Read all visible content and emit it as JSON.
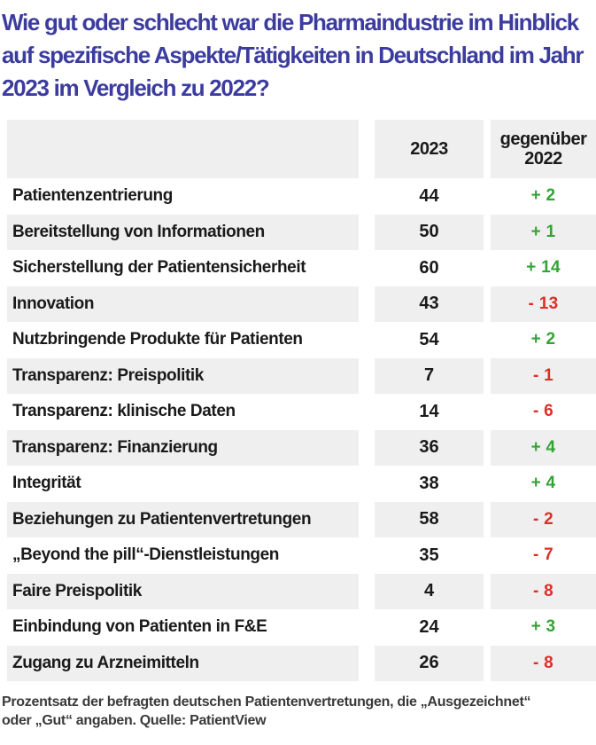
{
  "colors": {
    "title": "#3c3c9f",
    "stripe": "#efefef",
    "positive": "#33a335",
    "negative": "#dd2f27"
  },
  "title_lines": [
    "Wie gut oder schlecht war die Pharmaindustrie im Hinblick",
    "auf spezifische Aspekte/Tätigkeiten in Deutschland im Jahr",
    "2023 im Vergleich zu 2022?"
  ],
  "table": {
    "header": {
      "aspect": "",
      "col_2023": "2023",
      "col_delta": "gegenüber 2022"
    },
    "rows": [
      {
        "label": "Patientenzentrierung",
        "value": "44",
        "delta": "+ 2"
      },
      {
        "label": "Bereitstellung von Informationen",
        "value": "50",
        "delta": "+ 1"
      },
      {
        "label": "Sicherstellung der Patientensicherheit",
        "value": "60",
        "delta": "+ 14"
      },
      {
        "label": "Innovation",
        "value": "43",
        "delta": "- 13"
      },
      {
        "label": "Nutzbringende Produkte für Patienten",
        "value": "54",
        "delta": "+ 2"
      },
      {
        "label": "Transparenz: Preispolitik",
        "value": "7",
        "delta": "- 1"
      },
      {
        "label": "Transparenz: klinische Daten",
        "value": "14",
        "delta": "- 6"
      },
      {
        "label": "Transparenz: Finanzierung",
        "value": "36",
        "delta": "+ 4"
      },
      {
        "label": "Integrität",
        "value": "38",
        "delta": "+ 4"
      },
      {
        "label": "Beziehungen zu Patientenvertretungen",
        "value": "58",
        "delta": "- 2"
      },
      {
        "label": "„Beyond the pill“-Dienstleistungen",
        "value": "35",
        "delta": "- 7"
      },
      {
        "label": "Faire Preispolitik",
        "value": "4",
        "delta": "- 8"
      },
      {
        "label": "Einbindung von Patienten in F&E",
        "value": "24",
        "delta": "+ 3"
      },
      {
        "label": "Zugang zu Arzneimitteln",
        "value": "26",
        "delta": "- 8"
      }
    ]
  },
  "footnote_lines": [
    "Prozentsatz der befragten deutschen Patientenvertretungen, die „Ausgezeichnet“",
    "oder „Gut“ angaben. Quelle: PatientView"
  ],
  "chart_data": {
    "type": "table",
    "title": "Wie gut oder schlecht war die Pharmaindustrie im Hinblick auf spezifische Aspekte/Tätigkeiten in Deutschland im Jahr 2023 im Vergleich zu 2022?",
    "columns": [
      "",
      "2023",
      "gegenüber 2022"
    ],
    "categories": [
      "Patientenzentrierung",
      "Bereitstellung von Informationen",
      "Sicherstellung der Patientensicherheit",
      "Innovation",
      "Nutzbringende Produkte für Patienten",
      "Transparenz: Preispolitik",
      "Transparenz: klinische Daten",
      "Transparenz: Finanzierung",
      "Integrität",
      "Beziehungen zu Patientenvertretungen",
      "„Beyond the pill“-Dienstleistungen",
      "Faire Preispolitik",
      "Einbindung von Patienten in F&E",
      "Zugang zu Arzneimitteln"
    ],
    "series": [
      {
        "name": "2023",
        "values": [
          44,
          50,
          60,
          43,
          54,
          7,
          14,
          36,
          38,
          58,
          35,
          4,
          24,
          26
        ]
      },
      {
        "name": "gegenüber 2022",
        "values": [
          2,
          1,
          14,
          -13,
          2,
          -1,
          -6,
          4,
          4,
          -2,
          -7,
          -8,
          3,
          -8
        ]
      }
    ],
    "source": "PatientView"
  }
}
